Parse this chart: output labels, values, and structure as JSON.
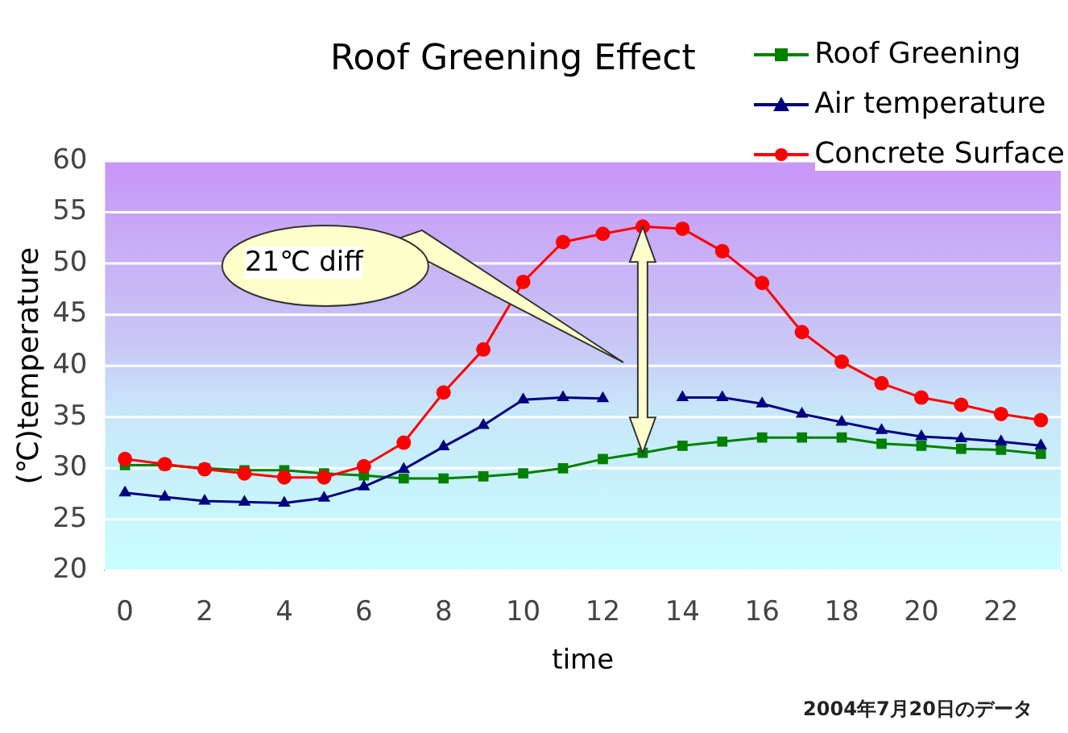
{
  "chart_data": {
    "type": "line",
    "title": "Roof Greening Effect",
    "xlabel": "time",
    "ylabel": "(℃)temperature",
    "x": [
      0,
      1,
      2,
      3,
      4,
      5,
      6,
      7,
      8,
      9,
      10,
      11,
      12,
      13,
      14,
      15,
      16,
      17,
      18,
      19,
      20,
      21,
      22,
      23
    ],
    "series": [
      {
        "name": "Roof Greening",
        "color": "#008000",
        "marker": "square",
        "values": [
          30.3,
          30.3,
          30,
          29.8,
          29.8,
          29.5,
          29.3,
          29,
          29,
          29.2,
          29.5,
          30,
          30.9,
          31.5,
          32.2,
          32.6,
          33,
          33,
          33,
          32.4,
          32.2,
          31.9,
          31.8,
          31.4
        ]
      },
      {
        "name": "Air temperature",
        "color": "#000080",
        "marker": "triangle",
        "values": [
          27.6,
          27.2,
          26.8,
          26.7,
          26.6,
          27.1,
          28.2,
          29.9,
          32.1,
          34.2,
          36.7,
          36.9,
          36.8,
          null,
          36.9,
          36.9,
          36.3,
          35.3,
          34.5,
          33.7,
          33.1,
          32.9,
          32.6,
          32.2
        ]
      },
      {
        "name": "Concrete Surface",
        "color": "#ff0000",
        "marker": "circle",
        "values": [
          30.9,
          30.4,
          29.9,
          29.5,
          29.1,
          29.1,
          30.2,
          32.5,
          37.4,
          41.6,
          48.2,
          52.1,
          52.9,
          53.6,
          53.4,
          51.2,
          48.1,
          43.3,
          40.4,
          38.3,
          36.9,
          36.2,
          35.3,
          34.7
        ]
      }
    ],
    "xlim": [
      -0.5,
      23.5
    ],
    "xticks": [
      0,
      2,
      4,
      6,
      8,
      10,
      12,
      14,
      16,
      18,
      20,
      22
    ],
    "ylim": [
      20,
      60
    ],
    "yticks": [
      20,
      25,
      30,
      35,
      40,
      45,
      50,
      55,
      60
    ],
    "grid": "y",
    "legend": "top right",
    "line_style": "solid",
    "annotations": [
      "21℃ diff",
      "2004年7月20日のデータ"
    ]
  }
}
